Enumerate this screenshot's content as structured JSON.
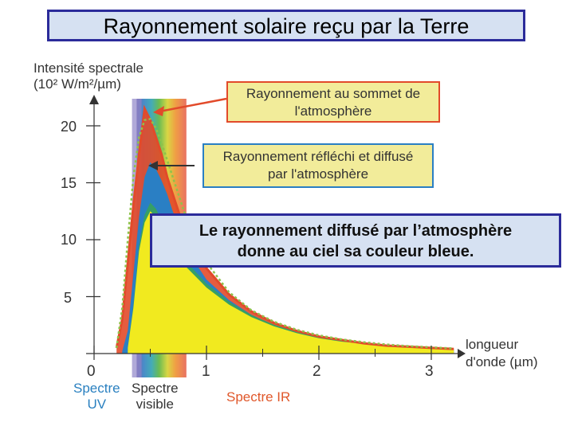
{
  "title": "Rayonnement solaire reçu par la Terre",
  "chart_data": {
    "type": "area",
    "ylabel_line1": "Intensité spectrale",
    "ylabel_line2": "(10² W/m²/µm)",
    "xlabel_line1": "longueur",
    "xlabel_line2": "d'onde (µm)",
    "xlim": [
      0,
      3.3
    ],
    "ylim": [
      0,
      23
    ],
    "xticks": [
      0,
      1,
      2,
      3
    ],
    "yticks": [
      5,
      10,
      15,
      20
    ],
    "xtick_labels": [
      "0",
      "1",
      "2",
      "3"
    ],
    "ytick_labels": [
      "5",
      "10",
      "15",
      "20"
    ],
    "spectral_bands": {
      "uv_label_line1": "Spectre",
      "uv_label_line2": "UV",
      "visible_label_line1": "Spectre",
      "visible_label_line2": "visible",
      "ir_label": "Spectre IR",
      "visible_range": [
        0.4,
        0.8
      ],
      "uv_range": [
        0.38,
        0.4
      ]
    },
    "series": [
      {
        "color": "#e24a2a",
        "x": [
          0.2,
          0.25,
          0.3,
          0.35,
          0.4,
          0.45,
          0.5,
          0.55,
          0.6,
          0.65,
          0.7,
          0.8,
          0.9,
          1.0,
          1.2,
          1.4,
          1.6,
          1.8,
          2.0,
          2.2,
          2.4,
          2.6,
          2.8,
          3.0,
          3.2
        ],
        "y": [
          0.5,
          3,
          8,
          13,
          17.5,
          21.5,
          20.5,
          19,
          17.5,
          15.5,
          14,
          11,
          9,
          7.5,
          5.2,
          3.7,
          2.7,
          2.0,
          1.5,
          1.2,
          0.9,
          0.7,
          0.6,
          0.5,
          0.4
        ]
      },
      {
        "color": "#2a7fc4",
        "x": [
          0.25,
          0.3,
          0.35,
          0.4,
          0.45,
          0.5,
          0.55,
          0.6,
          0.65,
          0.7,
          0.8,
          0.9,
          1.0,
          1.2,
          1.4,
          1.6,
          1.8,
          2.0,
          2.2,
          2.4,
          2.6,
          2.8,
          3.0,
          3.2
        ],
        "y": [
          0.2,
          2,
          7,
          12,
          15.5,
          16.8,
          16.2,
          15.2,
          14,
          12.5,
          10,
          8,
          6.5,
          4.7,
          3.4,
          2.5,
          1.9,
          1.4,
          1.1,
          0.9,
          0.7,
          0.55,
          0.5,
          0.4
        ]
      },
      {
        "color": "#f1ea1f",
        "x": [
          0.3,
          0.35,
          0.4,
          0.45,
          0.5,
          0.55,
          0.6,
          0.65,
          0.7,
          0.8,
          0.9,
          1.0,
          1.2,
          1.4,
          1.6,
          1.8,
          2.0,
          2.2,
          2.4,
          2.6,
          2.8,
          3.0,
          3.2
        ],
        "y": [
          0.5,
          4,
          9,
          11.5,
          12.5,
          12,
          11,
          10,
          9.2,
          7.8,
          6.8,
          5.8,
          4.3,
          3.2,
          2.4,
          1.8,
          1.35,
          1.05,
          0.85,
          0.7,
          0.55,
          0.45,
          0.35
        ]
      }
    ],
    "blackbody": {
      "color": "#8fc24a",
      "x": [
        0.2,
        0.25,
        0.3,
        0.35,
        0.4,
        0.45,
        0.5,
        0.55,
        0.6,
        0.7,
        0.8,
        0.9,
        1.0,
        1.2,
        1.4,
        1.6,
        1.8,
        2.0,
        2.2,
        2.4,
        2.6,
        2.8,
        3.0,
        3.2
      ],
      "y": [
        0.5,
        4,
        10,
        15.5,
        19,
        20.5,
        20.6,
        19.8,
        18.5,
        15.5,
        12.5,
        10,
        8,
        5.4,
        3.8,
        2.8,
        2.1,
        1.6,
        1.25,
        1.0,
        0.8,
        0.65,
        0.55,
        0.45
      ]
    }
  },
  "callouts": {
    "toa_line1": "Rayonnement au sommet de",
    "toa_line2": "l'atmosphère",
    "reflected_line1": "Rayonnement réfléchi et diffusé",
    "reflected_line2": "par l'atmosphère"
  },
  "note": {
    "line1": "Le rayonnement diffusé par l’atmosphère",
    "line2": "donne au ciel sa couleur bleue."
  },
  "colors": {
    "title_border": "#2b2b9a",
    "title_bg": "#d6e1f2",
    "callout_bg": "#f2ec9a",
    "red": "#e24a2a",
    "blue": "#2a7fc4",
    "yellow": "#f1ea1f",
    "green_dotted": "#8fc24a"
  }
}
